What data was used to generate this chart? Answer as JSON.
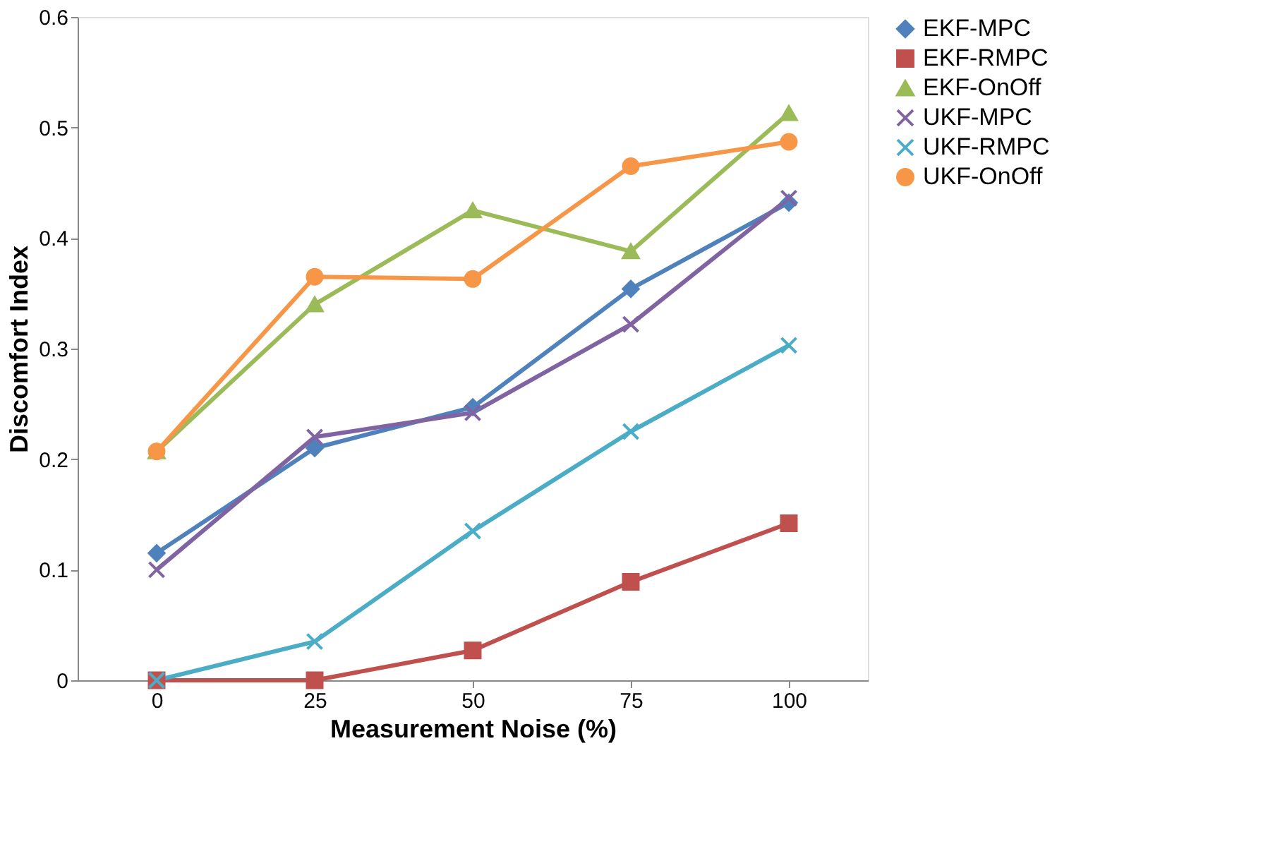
{
  "chart_data": {
    "type": "line",
    "xlabel": "Measurement Noise (%)",
    "ylabel": "Discomfort Index",
    "categories": [
      "0",
      "25",
      "50",
      "75",
      "100"
    ],
    "ylim": [
      0,
      0.6
    ],
    "yticks": [
      0,
      0.1,
      0.2,
      0.3,
      0.4,
      0.5,
      0.6
    ],
    "grid": false,
    "legend": "right",
    "series": [
      {
        "name": "EKF-MPC",
        "color": "#4f81bd",
        "marker": "diamond",
        "values": [
          0.115,
          0.21,
          0.247,
          0.354,
          0.432
        ]
      },
      {
        "name": "EKF-RMPC",
        "color": "#c0504d",
        "marker": "square",
        "values": [
          0,
          0,
          0.027,
          0.089,
          0.142
        ]
      },
      {
        "name": "EKF-OnOff",
        "color": "#9bbb59",
        "marker": "triangle",
        "values": [
          0.207,
          0.34,
          0.425,
          0.388,
          0.513
        ]
      },
      {
        "name": "UKF-MPC",
        "color": "#8064a2",
        "marker": "cross",
        "values": [
          0.1,
          0.22,
          0.242,
          0.322,
          0.436
        ]
      },
      {
        "name": "UKF-RMPC",
        "color": "#4bacc6",
        "marker": "cross",
        "values": [
          0,
          0.035,
          0.135,
          0.225,
          0.303
        ]
      },
      {
        "name": "UKF-OnOff",
        "color": "#f79646",
        "marker": "circle",
        "values": [
          0.207,
          0.365,
          0.363,
          0.465,
          0.487
        ]
      }
    ]
  }
}
